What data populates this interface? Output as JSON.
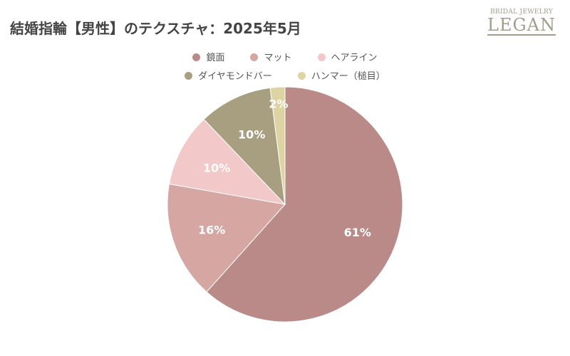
{
  "chart_data": {
    "type": "pie",
    "title": "結婚指輪【男性】のテクスチャ：2025年5月",
    "legend_position": "top",
    "slices": [
      {
        "label": "鏡面",
        "value": 61,
        "data_label": "61%",
        "color": "#b98a87"
      },
      {
        "label": "マット",
        "value": 16,
        "data_label": "16%",
        "color": "#d6a6a2"
      },
      {
        "label": "ヘアライン",
        "value": 10,
        "data_label": "10%",
        "color": "#f2c9c8"
      },
      {
        "label": "ダイヤモンドバー",
        "value": 10,
        "data_label": "10%",
        "color": "#a89f80"
      },
      {
        "label": "ハンマー（槌目）",
        "value": 2,
        "data_label": "2%",
        "color": "#ddd3a3"
      }
    ]
  },
  "logo": {
    "sub": "BRIDAL JEWELRY",
    "main": "LEGAN"
  }
}
